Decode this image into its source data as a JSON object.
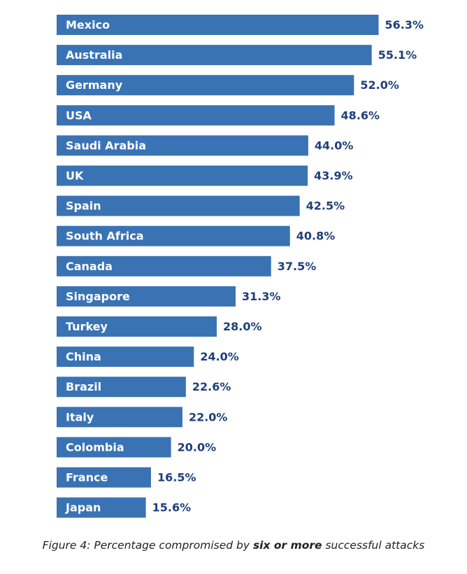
{
  "chart_data": {
    "type": "bar",
    "orientation": "horizontal",
    "categories": [
      "Mexico",
      "Australia",
      "Germany",
      "USA",
      "Saudi Arabia",
      "UK",
      "Spain",
      "South Africa",
      "Canada",
      "Singapore",
      "Turkey",
      "China",
      "Brazil",
      "Italy",
      "Colombia",
      "France",
      "Japan"
    ],
    "values": [
      56.3,
      55.1,
      52.0,
      48.6,
      44.0,
      43.9,
      42.5,
      40.8,
      37.5,
      31.3,
      28.0,
      24.0,
      22.6,
      22.0,
      20.0,
      16.5,
      15.6
    ],
    "value_labels": [
      "56.3%",
      "55.1%",
      "52.0%",
      "48.6%",
      "44.0%",
      "43.9%",
      "42.5%",
      "40.8%",
      "37.5%",
      "31.3%",
      "28.0%",
      "24.0%",
      "22.6%",
      "22.0%",
      "20.0%",
      "16.5%",
      "15.6%"
    ],
    "unit": "%",
    "grid": false,
    "legend": "none",
    "colors": {
      "bar": "#3a73b4",
      "bar_label": "#ffffff",
      "value_label": "#1f3f7a"
    }
  },
  "caption": {
    "prefix": "Figure 4: Percentage compromised by ",
    "emphasis": "six or more",
    "suffix": " successful attacks"
  }
}
